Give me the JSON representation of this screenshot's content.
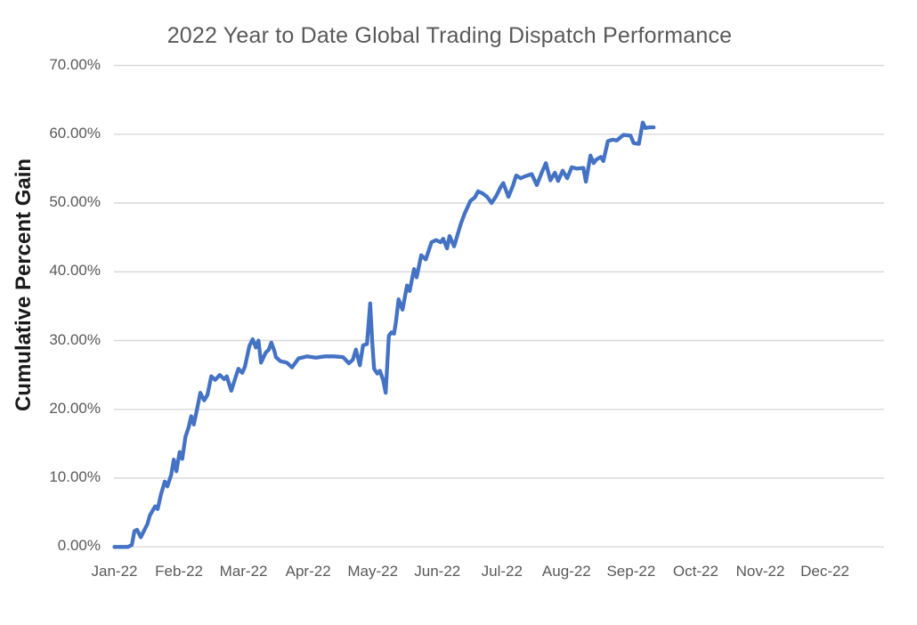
{
  "chart_data": {
    "type": "line",
    "title": "2022 Year to Date Global Trading Dispatch Performance",
    "ylabel": "Cumulative Percent Gain",
    "xlabel": "",
    "legend_position": "none",
    "grid": "horizontal",
    "y_unit": "percent",
    "ylim_percent": [
      0,
      70
    ],
    "y_tick_labels": [
      "70.00%",
      "60.00%",
      "50.00%",
      "40.00%",
      "30.00%",
      "20.00%",
      "10.00%",
      "0.00%"
    ],
    "y_tick_values": [
      70,
      60,
      50,
      40,
      30,
      20,
      10,
      0
    ],
    "x_tick_labels": [
      "Jan-22",
      "Feb-22",
      "Mar-22",
      "Apr-22",
      "May-22",
      "Jun-22",
      "Jul-22",
      "Aug-22",
      "Sep-22",
      "Oct-22",
      "Nov-22",
      "Dec-22"
    ],
    "colors": {
      "line": "#4472C4",
      "gridline": "#D9D9D9",
      "title_text": "#595959",
      "tick_text": "#595959",
      "axis_title_text": "#1A1A1A",
      "background": "#FFFFFF"
    },
    "series": [
      {
        "name": "Cumulative Percent Gain",
        "x_unit": "fractional months from Jan-22 tick (0 = early Jan, 1 = Feb, ... 8 = Sep)",
        "points": [
          [
            0.0,
            0.0
          ],
          [
            0.1,
            0.0
          ],
          [
            0.21,
            0.0
          ],
          [
            0.27,
            0.3
          ],
          [
            0.31,
            2.3
          ],
          [
            0.35,
            2.5
          ],
          [
            0.41,
            1.4
          ],
          [
            0.46,
            2.4
          ],
          [
            0.51,
            3.3
          ],
          [
            0.55,
            4.6
          ],
          [
            0.63,
            5.9
          ],
          [
            0.67,
            5.5
          ],
          [
            0.72,
            7.6
          ],
          [
            0.78,
            9.5
          ],
          [
            0.82,
            8.8
          ],
          [
            0.88,
            10.5
          ],
          [
            0.92,
            12.7
          ],
          [
            0.96,
            11.0
          ],
          [
            1.01,
            13.8
          ],
          [
            1.05,
            12.8
          ],
          [
            1.1,
            16.0
          ],
          [
            1.15,
            17.4
          ],
          [
            1.19,
            19.0
          ],
          [
            1.23,
            17.8
          ],
          [
            1.29,
            20.5
          ],
          [
            1.33,
            22.4
          ],
          [
            1.39,
            21.3
          ],
          [
            1.44,
            22.1
          ],
          [
            1.5,
            24.8
          ],
          [
            1.56,
            24.3
          ],
          [
            1.63,
            25.0
          ],
          [
            1.7,
            24.4
          ],
          [
            1.74,
            24.8
          ],
          [
            1.81,
            22.7
          ],
          [
            1.87,
            24.5
          ],
          [
            1.92,
            25.9
          ],
          [
            1.98,
            25.3
          ],
          [
            2.02,
            26.2
          ],
          [
            2.09,
            29.2
          ],
          [
            2.14,
            30.2
          ],
          [
            2.19,
            29.0
          ],
          [
            2.23,
            30.0
          ],
          [
            2.27,
            26.8
          ],
          [
            2.34,
            28.2
          ],
          [
            2.39,
            28.7
          ],
          [
            2.43,
            29.7
          ],
          [
            2.48,
            28.4
          ],
          [
            2.5,
            27.6
          ],
          [
            2.57,
            27.0
          ],
          [
            2.67,
            26.8
          ],
          [
            2.75,
            26.1
          ],
          [
            2.85,
            27.4
          ],
          [
            2.98,
            27.7
          ],
          [
            3.12,
            27.5
          ],
          [
            3.26,
            27.7
          ],
          [
            3.4,
            27.7
          ],
          [
            3.54,
            27.6
          ],
          [
            3.63,
            26.7
          ],
          [
            3.69,
            27.2
          ],
          [
            3.74,
            28.7
          ],
          [
            3.8,
            26.4
          ],
          [
            3.85,
            29.3
          ],
          [
            3.91,
            29.5
          ],
          [
            3.96,
            35.4
          ],
          [
            3.99,
            30.0
          ],
          [
            4.02,
            25.9
          ],
          [
            4.07,
            25.2
          ],
          [
            4.11,
            25.6
          ],
          [
            4.16,
            24.3
          ],
          [
            4.2,
            22.4
          ],
          [
            4.25,
            30.7
          ],
          [
            4.29,
            31.2
          ],
          [
            4.33,
            31.0
          ],
          [
            4.36,
            32.8
          ],
          [
            4.4,
            36.0
          ],
          [
            4.46,
            34.5
          ],
          [
            4.53,
            38.0
          ],
          [
            4.57,
            37.2
          ],
          [
            4.64,
            40.4
          ],
          [
            4.68,
            39.2
          ],
          [
            4.75,
            42.4
          ],
          [
            4.82,
            41.8
          ],
          [
            4.91,
            44.3
          ],
          [
            4.98,
            44.6
          ],
          [
            5.05,
            44.3
          ],
          [
            5.09,
            44.8
          ],
          [
            5.15,
            43.4
          ],
          [
            5.19,
            45.2
          ],
          [
            5.26,
            43.7
          ],
          [
            5.36,
            46.9
          ],
          [
            5.42,
            48.4
          ],
          [
            5.51,
            50.3
          ],
          [
            5.58,
            50.8
          ],
          [
            5.63,
            51.7
          ],
          [
            5.7,
            51.4
          ],
          [
            5.77,
            50.9
          ],
          [
            5.84,
            50.0
          ],
          [
            5.91,
            51.0
          ],
          [
            5.98,
            52.3
          ],
          [
            6.02,
            52.9
          ],
          [
            6.1,
            50.9
          ],
          [
            6.17,
            52.5
          ],
          [
            6.22,
            54.0
          ],
          [
            6.29,
            53.6
          ],
          [
            6.36,
            53.9
          ],
          [
            6.46,
            54.2
          ],
          [
            6.54,
            52.6
          ],
          [
            6.61,
            54.3
          ],
          [
            6.68,
            55.8
          ],
          [
            6.75,
            53.3
          ],
          [
            6.82,
            54.4
          ],
          [
            6.87,
            53.2
          ],
          [
            6.94,
            54.7
          ],
          [
            7.01,
            53.6
          ],
          [
            7.08,
            55.2
          ],
          [
            7.16,
            55.0
          ],
          [
            7.26,
            55.1
          ],
          [
            7.3,
            53.1
          ],
          [
            7.37,
            56.9
          ],
          [
            7.42,
            55.8
          ],
          [
            7.46,
            56.3
          ],
          [
            7.53,
            56.7
          ],
          [
            7.57,
            56.1
          ],
          [
            7.64,
            59.0
          ],
          [
            7.71,
            59.2
          ],
          [
            7.78,
            59.1
          ],
          [
            7.88,
            59.9
          ],
          [
            7.99,
            59.8
          ],
          [
            8.04,
            58.7
          ],
          [
            8.12,
            58.6
          ],
          [
            8.18,
            61.7
          ],
          [
            8.22,
            60.9
          ],
          [
            8.29,
            61.0
          ],
          [
            8.35,
            61.0
          ]
        ]
      }
    ]
  }
}
